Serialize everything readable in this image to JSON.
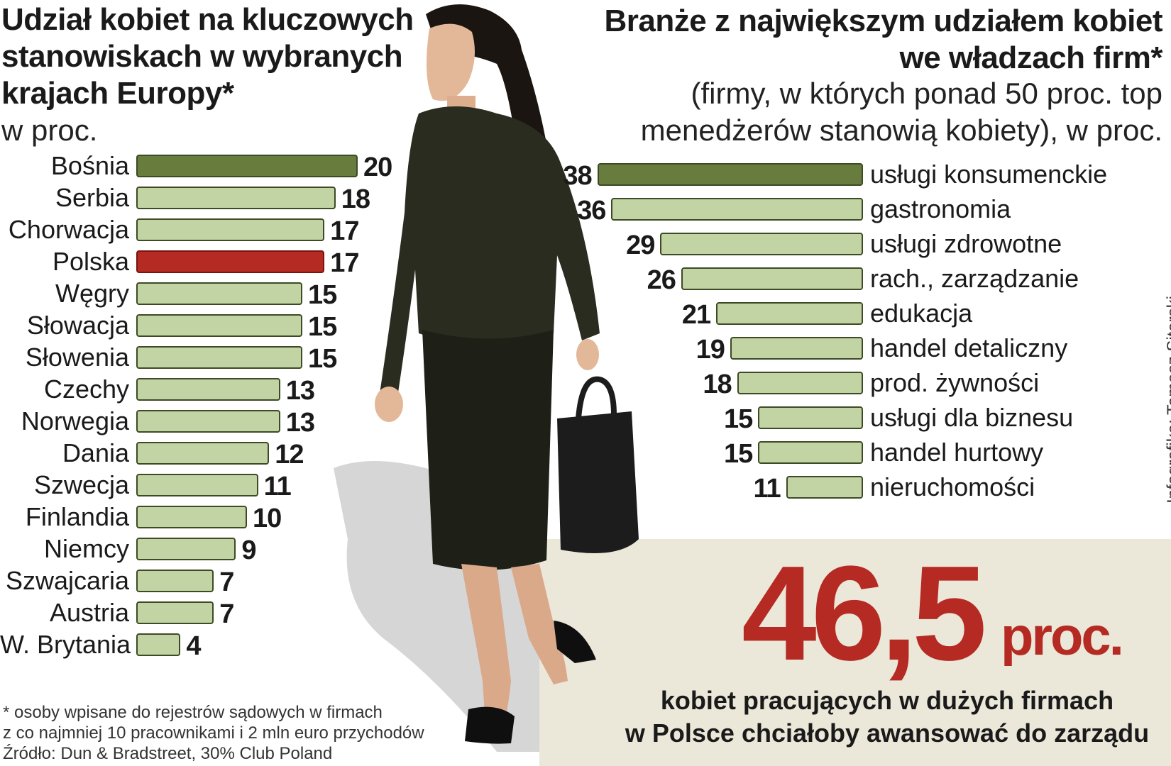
{
  "chart_data": [
    {
      "type": "bar",
      "orientation": "horizontal",
      "title": "Udział kobiet na kluczowych stanowiskach w wybranych krajach Europy*",
      "subtitle": "w proc.",
      "categories": [
        "Bośnia",
        "Serbia",
        "Chorwacja",
        "Polska",
        "Węgry",
        "Słowacja",
        "Słowenia",
        "Czechy",
        "Norwegia",
        "Dania",
        "Szwecja",
        "Finlandia",
        "Niemcy",
        "Szwajcaria",
        "Austria",
        "W. Brytania"
      ],
      "values": [
        20,
        18,
        17,
        17,
        15,
        15,
        15,
        13,
        13,
        12,
        11,
        10,
        9,
        7,
        7,
        4
      ],
      "highlight_category": "Polska",
      "colors": {
        "first": "#687c3e",
        "default": "#c3d4a4",
        "highlight": "#b52a22"
      }
    },
    {
      "type": "bar",
      "orientation": "horizontal",
      "title": "Branże z największym udziałem kobiet we władzach firm*",
      "subtitle": "(firmy, w których ponad 50 proc. top menedżerów stanowią kobiety), w proc.",
      "categories": [
        "usługi konsumenckie",
        "gastronomia",
        "usługi zdrowotne",
        "rach., zarządzanie",
        "edukacja",
        "handel detaliczny",
        "prod. żywności",
        "usługi dla biznesu",
        "handel hurtowy",
        "nieruchomości"
      ],
      "values": [
        38,
        36,
        29,
        26,
        21,
        19,
        18,
        15,
        15,
        11
      ],
      "colors": {
        "first": "#687c3e",
        "default": "#c3d4a4"
      }
    }
  ],
  "highlight": {
    "number": "46,5",
    "unit": "proc.",
    "description_line1": "kobiet pracujących w dużych firmach",
    "description_line2": "w Polsce chciałoby awansować do zarządu",
    "color": "#b52a22"
  },
  "footnote": {
    "line1": "* osoby wpisane do rejestrów sądowych w firmach",
    "line2": "z co najmniej 10 pracownikami i 2 mln euro przychodów",
    "line3": "Źródło: Dun & Bradstreet, 30% Club Poland"
  },
  "credit": "Infografika: Tomasz Sitarski"
}
